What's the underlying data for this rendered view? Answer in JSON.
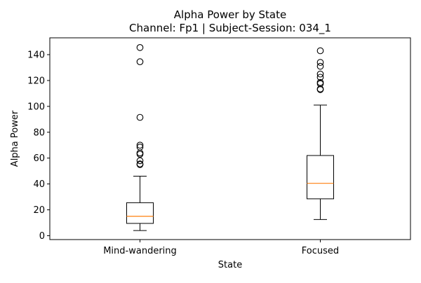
{
  "chart_data": {
    "type": "boxplot",
    "title": "Alpha Power by State",
    "subtitle": "Channel: Fp1 | Subject-Session: 034_1",
    "xlabel": "State",
    "ylabel": "Alpha Power",
    "ylim": [
      -3,
      153
    ],
    "yticks": [
      0,
      20,
      40,
      60,
      80,
      100,
      120,
      140
    ],
    "grid": false,
    "colors": {
      "box": "#000000",
      "median": "#ff7f0e",
      "flier": "#000000"
    },
    "categories": [
      "Mind-wandering",
      "Focused"
    ],
    "boxes": [
      {
        "category": "Mind-wandering",
        "whisker_low": 4,
        "q1": 9.5,
        "median": 15,
        "q3": 25.5,
        "whisker_high": 46,
        "outliers": [
          145.5,
          134.5,
          91.5,
          70,
          68.5,
          64,
          63,
          58,
          55.5,
          55
        ]
      },
      {
        "category": "Focused",
        "whisker_low": 12.5,
        "q1": 28.5,
        "median": 40.5,
        "q3": 62,
        "whisker_high": 101,
        "outliers": [
          143,
          134,
          131,
          125,
          122.5,
          118.5,
          117.5,
          113.5,
          113
        ]
      }
    ]
  }
}
